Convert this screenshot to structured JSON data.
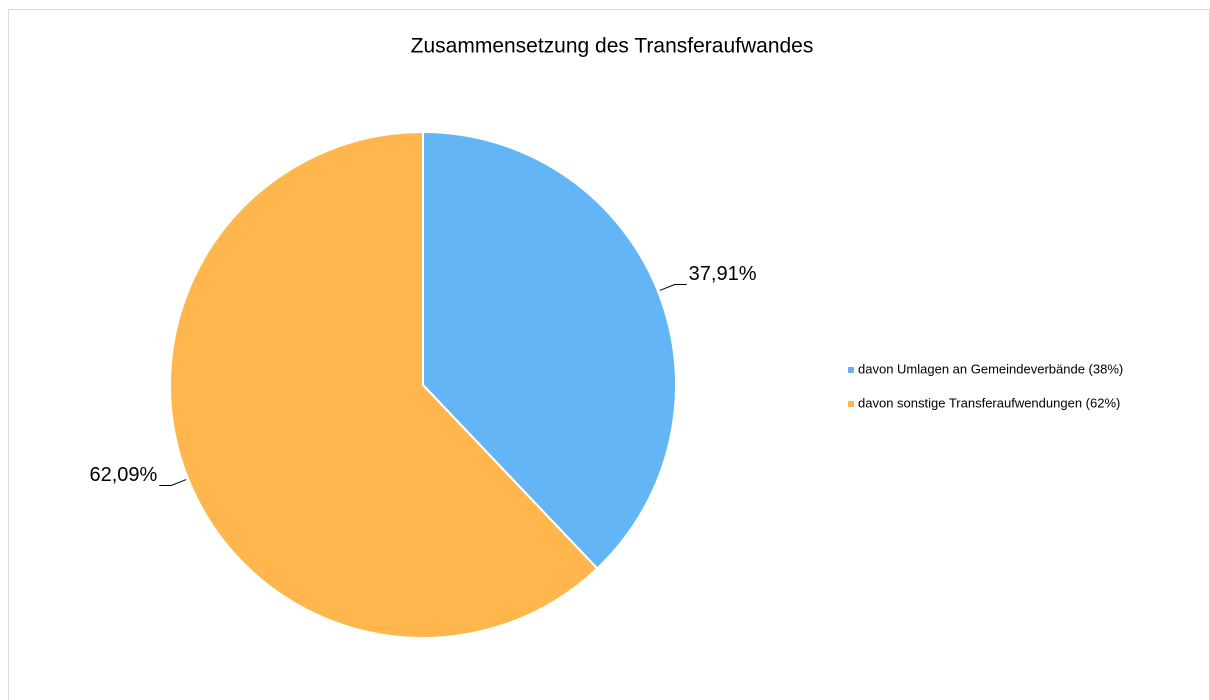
{
  "chart_data": {
    "type": "pie",
    "title": "Zusammensetzung des Transferaufwandes",
    "categories": [
      "davon Umlagen an Gemeindeverbände (38%)",
      "davon sonstige Transferaufwendungen (62%)"
    ],
    "values": [
      37.91,
      62.09
    ],
    "value_labels": [
      "37,91%",
      "62,09%"
    ],
    "colors": [
      "#64b5f6",
      "#ffb74d"
    ],
    "legend": "right"
  }
}
